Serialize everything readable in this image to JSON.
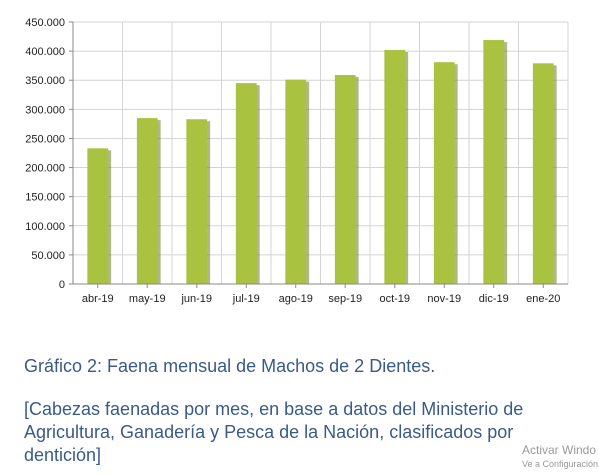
{
  "chart_data": {
    "type": "bar",
    "categories": [
      "abr-19",
      "may-19",
      "jun-19",
      "jul-19",
      "ago-19",
      "sep-19",
      "oct-19",
      "nov-19",
      "dic-19",
      "ene-20"
    ],
    "values": [
      233000,
      285000,
      283000,
      345000,
      351000,
      359000,
      402000,
      381000,
      419000,
      379000
    ],
    "ylim": [
      0,
      450000
    ],
    "yticks": [
      0,
      50000,
      100000,
      150000,
      200000,
      250000,
      300000,
      350000,
      400000,
      450000
    ],
    "ytick_labels": [
      "0",
      "50.000",
      "100.000",
      "150.000",
      "200.000",
      "250.000",
      "300.000",
      "350.000",
      "400.000",
      "450.000"
    ],
    "bar_color": "#a9c23f",
    "shadow_color": "#6f7f22",
    "grid": true,
    "legend": "none"
  },
  "caption": {
    "title": "Gráfico 2: Faena mensual de Machos de 2 Dientes.",
    "subtitle": "[Cabezas faenadas por mes, en base a datos del Ministerio de Agricultura, Ganadería y Pesca de la Nación, clasificados por dentición]"
  },
  "watermark": {
    "line1": "Activar Windo",
    "line2": "Ve a Configuración"
  }
}
